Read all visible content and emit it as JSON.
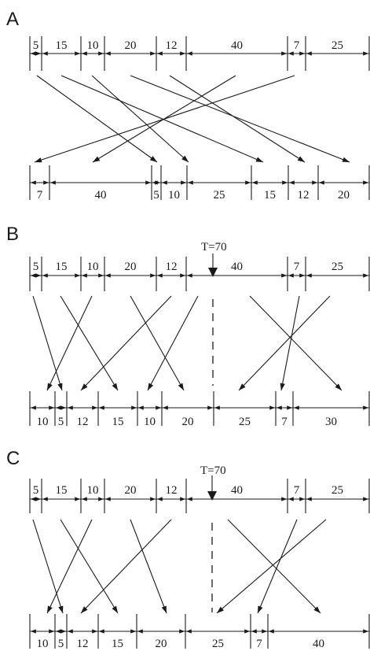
{
  "panels": [
    {
      "id": "A",
      "top": {
        "values": [
          "5",
          "15",
          "10",
          "20",
          "12",
          "40",
          "7",
          "25"
        ],
        "xs": [
          38,
          53,
          103,
          133,
          199,
          237,
          366,
          389,
          470
        ]
      },
      "bottom": {
        "values": [
          "7",
          "40",
          "5",
          "10",
          "25",
          "15",
          "12",
          "20"
        ],
        "xs": [
          38,
          63,
          193,
          205,
          238,
          320,
          367,
          405,
          470
        ]
      },
      "arrows": [
        [
          47,
          96,
          200,
          206
        ],
        [
          78,
          96,
          335,
          206
        ],
        [
          117,
          96,
          240,
          206
        ],
        [
          166,
          96,
          445,
          206
        ],
        [
          216,
          96,
          388,
          206
        ],
        [
          300,
          96,
          118,
          206
        ],
        [
          375,
          96,
          44,
          206
        ]
      ],
      "threshold": null
    },
    {
      "id": "B",
      "top": {
        "values": [
          "5",
          "15",
          "10",
          "20",
          "12",
          "40",
          "7",
          "25"
        ],
        "xs": [
          38,
          53,
          103,
          133,
          199,
          237,
          366,
          389,
          470
        ]
      },
      "bottom": {
        "values": [
          "10",
          "5",
          "12",
          "15",
          "10",
          "20",
          "25",
          "7",
          "30"
        ],
        "xs": [
          38,
          70,
          85,
          125,
          175,
          206,
          272,
          351,
          373,
          470
        ]
      },
      "arrows": [
        [
          42,
          376,
          79,
          496
        ],
        [
          77,
          376,
          150,
          496
        ],
        [
          117,
          376,
          60,
          496
        ],
        [
          166,
          376,
          234,
          496
        ],
        [
          218,
          376,
          103,
          496
        ],
        [
          252,
          376,
          188,
          496
        ],
        [
          318,
          376,
          435,
          496
        ],
        [
          381,
          376,
          358,
          496
        ],
        [
          420,
          376,
          304,
          496
        ]
      ],
      "threshold": {
        "label": "T=70",
        "x": 271
      }
    },
    {
      "id": "C",
      "top": {
        "values": [
          "5",
          "15",
          "10",
          "20",
          "12",
          "40",
          "7",
          "25"
        ],
        "xs": [
          38,
          53,
          103,
          133,
          199,
          237,
          366,
          389,
          470
        ]
      },
      "bottom": {
        "values": [
          "10",
          "5",
          "12",
          "15",
          "20",
          "25",
          "7",
          "40"
        ],
        "xs": [
          38,
          70,
          85,
          125,
          174,
          236,
          319,
          341,
          470
        ]
      },
      "arrows": [
        [
          42,
          660,
          80,
          779
        ],
        [
          77,
          660,
          150,
          779
        ],
        [
          117,
          660,
          60,
          779
        ],
        [
          166,
          660,
          212,
          779
        ],
        [
          218,
          660,
          103,
          779
        ],
        [
          290,
          660,
          408,
          779
        ],
        [
          378,
          660,
          328,
          779
        ],
        [
          415,
          660,
          276,
          779
        ]
      ],
      "threshold": {
        "label": "T=70",
        "x": 270
      }
    }
  ]
}
